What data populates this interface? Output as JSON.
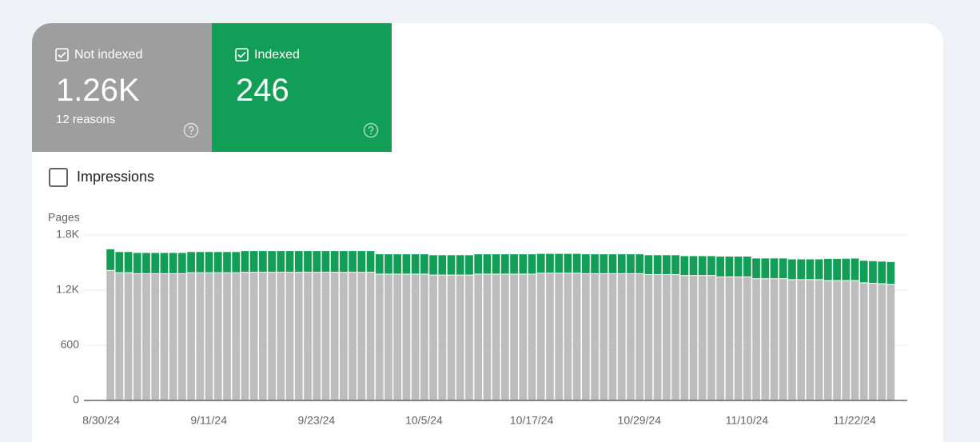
{
  "summary": [
    {
      "value": "1.26K",
      "sub": "12 reasons"
    },
    {
      "value": "246"
    }
  ],
  "impressions": "Impressions",
  "chart_data": {
    "type": "stacked_bar",
    "y_label": "Pages",
    "categories": [
      "8/30/24",
      null,
      null,
      null,
      null,
      null,
      null,
      null,
      null,
      null,
      null,
      null,
      "9/11/24",
      null,
      null,
      null,
      null,
      null,
      null,
      null,
      null,
      null,
      null,
      null,
      "9/23/24",
      null,
      null,
      null,
      null,
      null,
      null,
      null,
      null,
      null,
      null,
      null,
      "10/5/24",
      null,
      null,
      null,
      null,
      null,
      null,
      null,
      null,
      null,
      null,
      null,
      "10/17/24",
      null,
      null,
      null,
      null,
      null,
      null,
      null,
      null,
      null,
      null,
      null,
      "10/29/24",
      null,
      null,
      null,
      null,
      null,
      null,
      null,
      null,
      null,
      null,
      null,
      "11/10/24",
      null,
      null,
      null,
      null,
      null,
      null,
      null,
      null,
      null,
      null,
      null,
      "11/22/24",
      null,
      null,
      null
    ],
    "series": [
      {
        "name": "Not indexed",
        "color": "#bdbdbd",
        "values": [
          1410,
          1385,
          1385,
          1375,
          1375,
          1375,
          1375,
          1375,
          1375,
          1385,
          1385,
          1385,
          1385,
          1385,
          1385,
          1390,
          1390,
          1390,
          1390,
          1390,
          1390,
          1390,
          1390,
          1390,
          1390,
          1390,
          1390,
          1390,
          1390,
          1390,
          1370,
          1370,
          1370,
          1370,
          1370,
          1370,
          1360,
          1360,
          1360,
          1360,
          1360,
          1370,
          1370,
          1370,
          1370,
          1370,
          1370,
          1370,
          1380,
          1380,
          1380,
          1380,
          1380,
          1375,
          1375,
          1375,
          1375,
          1375,
          1375,
          1375,
          1365,
          1365,
          1365,
          1365,
          1355,
          1355,
          1355,
          1355,
          1340,
          1340,
          1340,
          1340,
          1320,
          1320,
          1320,
          1320,
          1310,
          1310,
          1310,
          1310,
          1300,
          1300,
          1300,
          1300,
          1275,
          1270,
          1265,
          1260
        ]
      },
      {
        "name": "Indexed",
        "color": "#129e57",
        "values": [
          235,
          230,
          230,
          230,
          230,
          230,
          230,
          230,
          230,
          230,
          230,
          230,
          230,
          230,
          230,
          235,
          235,
          235,
          235,
          235,
          235,
          235,
          235,
          235,
          235,
          235,
          235,
          235,
          235,
          235,
          220,
          220,
          220,
          220,
          220,
          220,
          220,
          220,
          220,
          220,
          220,
          220,
          220,
          220,
          220,
          220,
          220,
          220,
          215,
          215,
          215,
          215,
          215,
          215,
          215,
          215,
          215,
          215,
          215,
          215,
          215,
          215,
          215,
          215,
          215,
          215,
          215,
          215,
          225,
          225,
          225,
          225,
          225,
          225,
          225,
          225,
          225,
          225,
          225,
          225,
          240,
          240,
          242,
          244,
          245,
          246,
          246,
          246
        ]
      }
    ],
    "ylim": [
      0,
      1800
    ],
    "yticks": [
      0,
      600,
      {
        "value": 1200,
        "label": "1.2K"
      },
      {
        "value": 1800,
        "label": "1.8K"
      }
    ],
    "grid": true
  }
}
